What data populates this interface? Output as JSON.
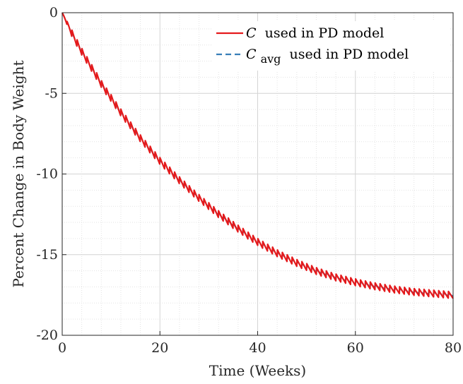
{
  "chart_data": {
    "type": "line",
    "title": "",
    "xlabel": "Time (Weeks)",
    "ylabel": "Percent Change in Body Weight",
    "xlim": [
      0,
      80
    ],
    "ylim": [
      -20,
      0
    ],
    "xticks": [
      0,
      20,
      40,
      60,
      80
    ],
    "yticks": [
      0,
      -5,
      -10,
      -15,
      -20
    ],
    "xtick_labels": [
      "0",
      "20",
      "40",
      "60",
      "80"
    ],
    "ytick_labels": [
      "0",
      "-5",
      "-10",
      "-15",
      "-20"
    ],
    "grid": true,
    "minor_grid": true,
    "legend_position": "top-right",
    "dosing_interval_weeks": 1,
    "series": [
      {
        "name": "C used in PD model",
        "legend_symbol": "C",
        "legend_rest": "used in PD model",
        "color": "#e41a1c",
        "style": "solid",
        "x": [
          0,
          2,
          4,
          6,
          8,
          10,
          12,
          14,
          16,
          18,
          20,
          24,
          28,
          32,
          36,
          40,
          44,
          48,
          52,
          56,
          60,
          64,
          68,
          72,
          76,
          80
        ],
        "y": [
          0,
          -1.3,
          -2.4,
          -3.4,
          -4.4,
          -5.3,
          -6.2,
          -7.0,
          -7.8,
          -8.5,
          -9.2,
          -10.4,
          -11.5,
          -12.5,
          -13.4,
          -14.2,
          -14.9,
          -15.5,
          -16.0,
          -16.4,
          -16.7,
          -16.95,
          -17.15,
          -17.3,
          -17.4,
          -17.5
        ],
        "oscillation_amplitude": 0.22
      },
      {
        "name": "Cavg used in PD model",
        "legend_symbol": "C",
        "legend_subscript": "avg",
        "legend_rest": "used in PD model",
        "color": "#377eb8",
        "style": "dashed",
        "x": [
          0,
          2,
          4,
          6,
          8,
          10,
          12,
          14,
          16,
          18,
          20,
          24,
          28,
          32,
          36,
          40,
          44,
          48,
          52,
          56,
          60,
          64,
          68,
          72,
          76,
          80
        ],
        "y": [
          0,
          -1.3,
          -2.4,
          -3.4,
          -4.4,
          -5.3,
          -6.2,
          -7.0,
          -7.8,
          -8.5,
          -9.2,
          -10.4,
          -11.5,
          -12.5,
          -13.4,
          -14.2,
          -14.9,
          -15.5,
          -16.0,
          -16.4,
          -16.7,
          -16.95,
          -17.15,
          -17.3,
          -17.4,
          -17.5
        ],
        "oscillation_amplitude": 0.08
      }
    ]
  }
}
